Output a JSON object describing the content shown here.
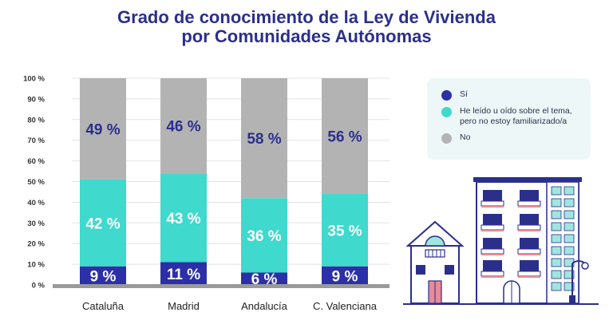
{
  "title": {
    "line1": "Grado de conocimiento de la Ley de Vivienda",
    "line2": "por Comunidades Autónomas"
  },
  "colors": {
    "si": "#2b30a8",
    "he_leido": "#3fd9cd",
    "no": "#b3b3b3",
    "title": "#2b2f8c",
    "axis": "#9a9a9a"
  },
  "legend": {
    "items": [
      {
        "label": "Sí",
        "color": "#2b30a8"
      },
      {
        "label": "He leído u oído sobre el tema,\npero no estoy familiarizado/a",
        "color": "#3fd9cd"
      },
      {
        "label": "No",
        "color": "#b3b3b3"
      }
    ]
  },
  "chart_data": {
    "type": "bar",
    "stacked": true,
    "categories": [
      "Cataluña",
      "Madrid",
      "Andalucía",
      "C. Valenciana"
    ],
    "series": [
      {
        "name": "Sí",
        "values": [
          9,
          11,
          6,
          9
        ],
        "color": "#2b30a8"
      },
      {
        "name": "He leído u oído sobre el tema, pero no estoy familiarizado/a",
        "values": [
          42,
          43,
          36,
          35
        ],
        "color": "#3fd9cd"
      },
      {
        "name": "No",
        "values": [
          49,
          46,
          58,
          56
        ],
        "color": "#b3b3b3"
      }
    ],
    "data_labels": [
      [
        "9 %",
        "11 %",
        "6 %",
        "9 %"
      ],
      [
        "42 %",
        "43 %",
        "36 %",
        "35 %"
      ],
      [
        "49 %",
        "46 %",
        "58 %",
        "56 %"
      ]
    ],
    "yticks": [
      "0 %",
      "10 %",
      "20 %",
      "30 %",
      "40 %",
      "50 %",
      "60 %",
      "70 %",
      "80 %",
      "90 %",
      "100 %"
    ],
    "ylim": [
      0,
      100
    ],
    "grid": true,
    "legend_position": "right"
  }
}
